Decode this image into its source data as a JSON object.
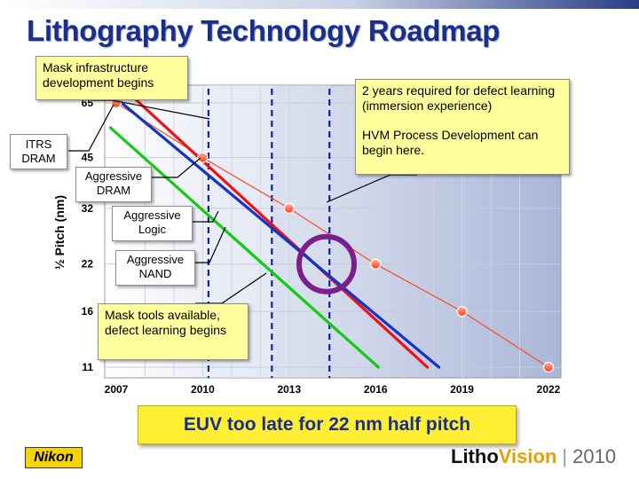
{
  "slide": {
    "title": "Lithography Technology Roadmap",
    "banner": "EUV too late for 22 nm half pitch",
    "logo": "Nikon",
    "brand": {
      "litho": "Litho",
      "vision": "Vision",
      "separator": "|",
      "year": "2010"
    }
  },
  "callouts": {
    "mask_infra": "Mask infrastructure development begins",
    "defect_learning": "2 years required for defect learning (immersion experience)",
    "hvm": "HVM Process Development can begin here.",
    "mask_tools": "Mask tools available, defect learning begins"
  },
  "series_labels": {
    "itrs": "ITRS DRAM",
    "agg_dram": "Aggressive DRAM",
    "agg_logic": "Aggressive Logic",
    "agg_nand": "Aggressive NAND"
  },
  "colors": {
    "title": "#1a2f8a",
    "itrs": "#ff4a1c",
    "agg_dram": "#ee1111",
    "agg_logic": "#1133cc",
    "agg_nand": "#11cc11",
    "circle": "#7a1f8c",
    "callout_fill": "#ffff9e",
    "banner_fill": "#ffee33"
  },
  "chart_data": {
    "type": "line",
    "title": "",
    "xlabel": "",
    "ylabel": "½ Pitch (nm)",
    "y_scale": "log",
    "xlim": [
      2007,
      2022
    ],
    "ylim": [
      11,
      65
    ],
    "x_ticks": [
      2007,
      2010,
      2013,
      2016,
      2019,
      2022
    ],
    "y_ticks": [
      65,
      45,
      32,
      22,
      16,
      11
    ],
    "series": [
      {
        "name": "ITRS DRAM",
        "markers": true,
        "x": [
          2007,
          2010,
          2013,
          2016,
          2019,
          2022
        ],
        "y": [
          65,
          45,
          32,
          22,
          16,
          11
        ]
      },
      {
        "name": "Aggressive DRAM",
        "markers": false,
        "x": [
          2007,
          2017.8
        ],
        "y": [
          75,
          11
        ]
      },
      {
        "name": "Aggressive Logic",
        "markers": false,
        "x": [
          2007,
          2018.2
        ],
        "y": [
          67,
          11
        ]
      },
      {
        "name": "Aggressive NAND",
        "markers": false,
        "x": [
          2006.8,
          2016.1
        ],
        "y": [
          55,
          11
        ]
      }
    ],
    "vertical_markers": [
      2010.2,
      2012.4,
      2014.4
    ],
    "highlight": {
      "x": 2014.3,
      "y": 22,
      "shape": "circle"
    }
  }
}
